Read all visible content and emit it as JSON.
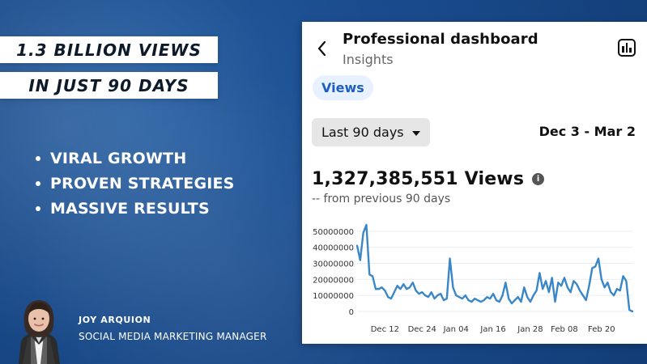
{
  "promo": {
    "headline_1": "1.3 BILLION VIEWS",
    "headline_2": "IN JUST 90 DAYS",
    "bullets": [
      "VIRAL GROWTH",
      "PROVEN STRATEGIES",
      "MASSIVE RESULTS"
    ],
    "person_name": "JOY ARQUION",
    "person_title": "SOCIAL MEDIA MARKETING MANAGER"
  },
  "dashboard": {
    "title": "Professional dashboard",
    "subtitle": "Insights",
    "tab": "Views",
    "date_dropdown": "Last 90 days",
    "date_range": "Dec 3 - Mar 2",
    "total_views": "1,327,385,551 Views",
    "comparison": "-- from previous 90 days",
    "icons": {
      "back": "chevron-left-icon",
      "insights": "bar-chart-icon",
      "info": "info-icon",
      "dropdown": "caret-down-icon"
    }
  },
  "chart_data": {
    "type": "line",
    "title": "",
    "xlabel": "",
    "ylabel": "",
    "ylim": [
      0,
      55000000
    ],
    "y_ticks": [
      0,
      10000000,
      20000000,
      30000000,
      40000000,
      50000000
    ],
    "x_tick_labels": [
      "Dec 12",
      "Dec 24",
      "Jan 04",
      "Jan 16",
      "Jan 28",
      "Feb 08",
      "Feb 20"
    ],
    "series": [
      {
        "color": "#3a87c8",
        "x": [
          "Dec 3",
          "Dec 4",
          "Dec 5",
          "Dec 6",
          "Dec 7",
          "Dec 8",
          "Dec 9",
          "Dec 10",
          "Dec 11",
          "Dec 12",
          "Dec 13",
          "Dec 14",
          "Dec 15",
          "Dec 16",
          "Dec 17",
          "Dec 18",
          "Dec 19",
          "Dec 20",
          "Dec 21",
          "Dec 22",
          "Dec 23",
          "Dec 24",
          "Dec 25",
          "Dec 26",
          "Dec 27",
          "Dec 28",
          "Dec 29",
          "Dec 30",
          "Dec 31",
          "Jan 01",
          "Jan 02",
          "Jan 03",
          "Jan 04",
          "Jan 05",
          "Jan 06",
          "Jan 07",
          "Jan 08",
          "Jan 09",
          "Jan 10",
          "Jan 11",
          "Jan 12",
          "Jan 13",
          "Jan 14",
          "Jan 15",
          "Jan 16",
          "Jan 17",
          "Jan 18",
          "Jan 19",
          "Jan 20",
          "Jan 21",
          "Jan 22",
          "Jan 23",
          "Jan 24",
          "Jan 25",
          "Jan 26",
          "Jan 27",
          "Jan 28",
          "Jan 29",
          "Jan 30",
          "Jan 31",
          "Feb 01",
          "Feb 02",
          "Feb 03",
          "Feb 04",
          "Feb 05",
          "Feb 06",
          "Feb 07",
          "Feb 08",
          "Feb 09",
          "Feb 10",
          "Feb 11",
          "Feb 12",
          "Feb 13",
          "Feb 14",
          "Feb 15",
          "Feb 16",
          "Feb 17",
          "Feb 18",
          "Feb 19",
          "Feb 20",
          "Feb 21",
          "Feb 22",
          "Feb 23",
          "Feb 24",
          "Feb 25",
          "Feb 26",
          "Feb 27",
          "Feb 28",
          "Mar 01",
          "Mar 02"
        ],
        "values": [
          41000000,
          32000000,
          49000000,
          54000000,
          23000000,
          22000000,
          14000000,
          14000000,
          15000000,
          13000000,
          9000000,
          8000000,
          12000000,
          16000000,
          14000000,
          17000000,
          14000000,
          15000000,
          18000000,
          13000000,
          11000000,
          12000000,
          10000000,
          9000000,
          12000000,
          8000000,
          10000000,
          11000000,
          7000000,
          8000000,
          33000000,
          15000000,
          10000000,
          9000000,
          8000000,
          10000000,
          7000000,
          6000000,
          8000000,
          7000000,
          6000000,
          7000000,
          9000000,
          8000000,
          11000000,
          7000000,
          6000000,
          10000000,
          18000000,
          8000000,
          5000000,
          7000000,
          9000000,
          6000000,
          15000000,
          9000000,
          6000000,
          10000000,
          13000000,
          24000000,
          14000000,
          19000000,
          12000000,
          21000000,
          6000000,
          18000000,
          16000000,
          21000000,
          15000000,
          12000000,
          19000000,
          17000000,
          13000000,
          10000000,
          7000000,
          16000000,
          27000000,
          28000000,
          33000000,
          20000000,
          15000000,
          18000000,
          12000000,
          10000000,
          14000000,
          13000000,
          22000000,
          19000000,
          1000000,
          0
        ]
      }
    ],
    "grid": true,
    "legend": "none"
  }
}
